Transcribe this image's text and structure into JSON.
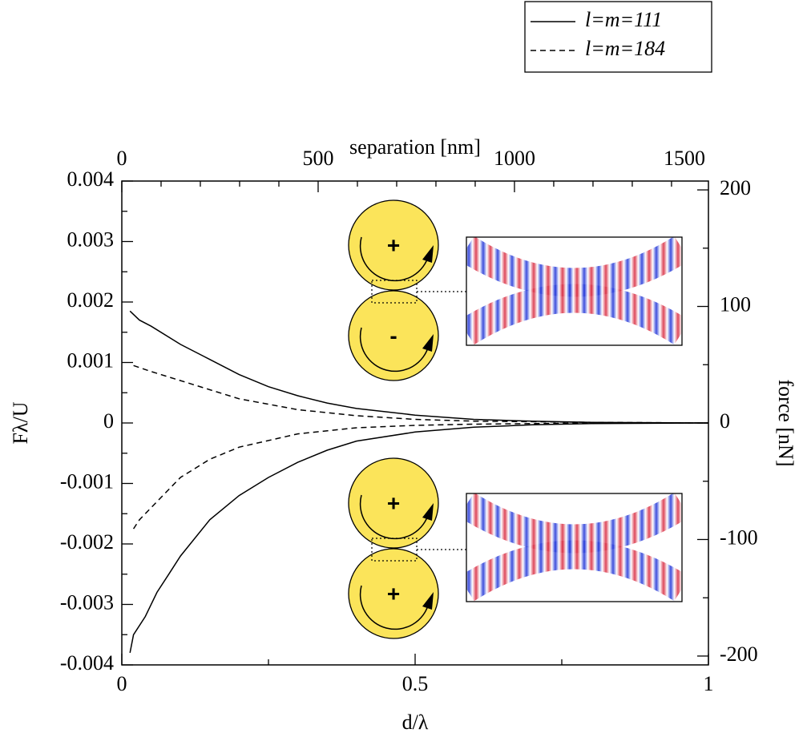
{
  "chart_data": {
    "type": "line",
    "xlabel": "d/λ",
    "x2label": "separation [nm]",
    "ylabel": "Fλ/U",
    "y2label": "force [nN]",
    "xlim": [
      0,
      1
    ],
    "xticks": [
      0,
      0.5,
      1
    ],
    "x_minor_ticks": [
      0.25,
      0.75
    ],
    "x2lim": [
      0,
      1494
    ],
    "x2ticks": [
      0,
      500,
      1000,
      1500
    ],
    "x2_minor_ticks": [
      100,
      200,
      300,
      400,
      600,
      700,
      800,
      900,
      1100,
      1200,
      1300,
      1400
    ],
    "ylim": [
      -0.004,
      0.004
    ],
    "yticks": [
      -0.004,
      -0.003,
      -0.002,
      -0.001,
      0,
      0.001,
      0.002,
      0.003,
      0.004
    ],
    "y_minor_ticks": [
      -0.0035,
      -0.0025,
      -0.0015,
      -0.0005,
      0.0005,
      0.0015,
      0.0025,
      0.0035
    ],
    "y2lim": [
      -207.6,
      207.6
    ],
    "y2ticks": [
      -200,
      -100,
      0,
      100,
      200
    ],
    "y2_minor_ticks": [
      -150,
      -50,
      50,
      150
    ],
    "color": "#000000",
    "series": [
      {
        "name": "l=m=111",
        "dash": "solid",
        "branches": [
          {
            "x": [
              0.014,
              0.03,
              0.05,
              0.1,
              0.15,
              0.2,
              0.25,
              0.3,
              0.35,
              0.4,
              0.5,
              0.6,
              0.7,
              0.8,
              1
            ],
            "values": [
              0.00185,
              0.0017,
              0.0016,
              0.0013,
              0.00105,
              0.0008,
              0.0006,
              0.00045,
              0.00033,
              0.00024,
              0.00013,
              6e-05,
              3e-05,
              1e-05,
              0
            ]
          },
          {
            "x": [
              0.014,
              0.02,
              0.04,
              0.06,
              0.08,
              0.1,
              0.15,
              0.2,
              0.25,
              0.3,
              0.35,
              0.4,
              0.5,
              0.6,
              0.7,
              0.8,
              1
            ],
            "values": [
              -0.0038,
              -0.0035,
              -0.0032,
              -0.0028,
              -0.0025,
              -0.0022,
              -0.0016,
              -0.0012,
              -0.0009,
              -0.00065,
              -0.00045,
              -0.0003,
              -0.00015,
              -7e-05,
              -3e-05,
              -1e-05,
              0
            ]
          }
        ]
      },
      {
        "name": "l=m=184",
        "dash": "dashed",
        "branches": [
          {
            "x": [
              0.02,
              0.05,
              0.1,
              0.15,
              0.2,
              0.3,
              0.4,
              0.5,
              0.6,
              0.8,
              1
            ],
            "values": [
              0.00095,
              0.00085,
              0.0007,
              0.00055,
              0.0004,
              0.00022,
              0.00012,
              6e-05,
              3e-05,
              1e-05,
              0
            ]
          },
          {
            "x": [
              0.02,
              0.03,
              0.05,
              0.1,
              0.15,
              0.2,
              0.3,
              0.4,
              0.5,
              0.6,
              0.8,
              1
            ],
            "values": [
              -0.00175,
              -0.0016,
              -0.0014,
              -0.0009,
              -0.0006,
              -0.0004,
              -0.00018,
              -8e-05,
              -4e-05,
              -2e-05,
              0,
              0
            ]
          }
        ]
      }
    ],
    "insets": [
      {
        "labels": [
          "+",
          "-"
        ]
      },
      {
        "labels": [
          "+",
          "+"
        ]
      }
    ]
  }
}
